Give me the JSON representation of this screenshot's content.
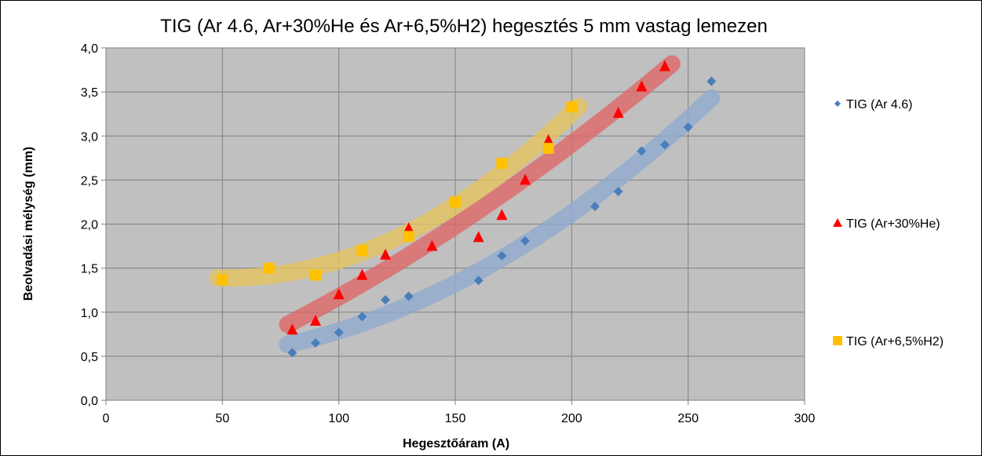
{
  "chart_data": {
    "type": "scatter",
    "title": "TIG (Ar 4.6, Ar+30%He és Ar+6,5%H2) hegesztés 5 mm vastag lemezen",
    "xlabel": "Hegesztőáram (A)",
    "ylabel": "Beolvadási mélység (mm)",
    "xlim": [
      0,
      300
    ],
    "ylim": [
      0,
      4
    ],
    "x_ticks": [
      "0",
      "50",
      "100",
      "150",
      "200",
      "250",
      "300"
    ],
    "y_ticks": [
      "0,0",
      "0,5",
      "1,0",
      "1,5",
      "2,0",
      "2,5",
      "3,0",
      "3,5",
      "4,0"
    ],
    "grid": true,
    "legend_position": "right",
    "plot_background": "#c0c0c0",
    "series": [
      {
        "name": "TIG (Ar 4.6)",
        "marker": "diamond",
        "color": "#4a7ebb",
        "trend_color": "#8faad0",
        "x": [
          80,
          90,
          100,
          110,
          120,
          130,
          160,
          170,
          180,
          210,
          220,
          230,
          240,
          250,
          260
        ],
        "y": [
          0.54,
          0.65,
          0.77,
          0.95,
          1.14,
          1.18,
          1.36,
          1.64,
          1.81,
          2.2,
          2.37,
          2.83,
          2.9,
          3.1,
          3.62
        ],
        "trend": {
          "x": [
            78,
            260
          ],
          "y": [
            0.63,
            3.42
          ]
        }
      },
      {
        "name": "TIG (Ar+30%He)",
        "marker": "triangle",
        "color": "#ff0000",
        "trend_color": "#e06666",
        "x": [
          80,
          90,
          100,
          110,
          120,
          130,
          140,
          160,
          170,
          180,
          190,
          220,
          230,
          240
        ],
        "y": [
          0.8,
          0.9,
          1.2,
          1.42,
          1.65,
          1.95,
          1.75,
          1.85,
          2.1,
          2.5,
          2.95,
          3.26,
          3.56,
          3.79
        ],
        "trend": {
          "x": [
            78,
            243
          ],
          "y": [
            0.88,
            3.75
          ]
        }
      },
      {
        "name": "TIG (Ar+6,5%H2)",
        "marker": "square",
        "color": "#ffc000",
        "trend_color": "#e6c45c",
        "x": [
          50,
          70,
          90,
          110,
          130,
          150,
          170,
          190,
          200
        ],
        "y": [
          1.37,
          1.5,
          1.42,
          1.7,
          1.86,
          2.25,
          2.69,
          2.86,
          3.33
        ],
        "trend": {
          "x": [
            48,
            203
          ],
          "y": [
            1.38,
            3.25
          ]
        }
      }
    ]
  }
}
